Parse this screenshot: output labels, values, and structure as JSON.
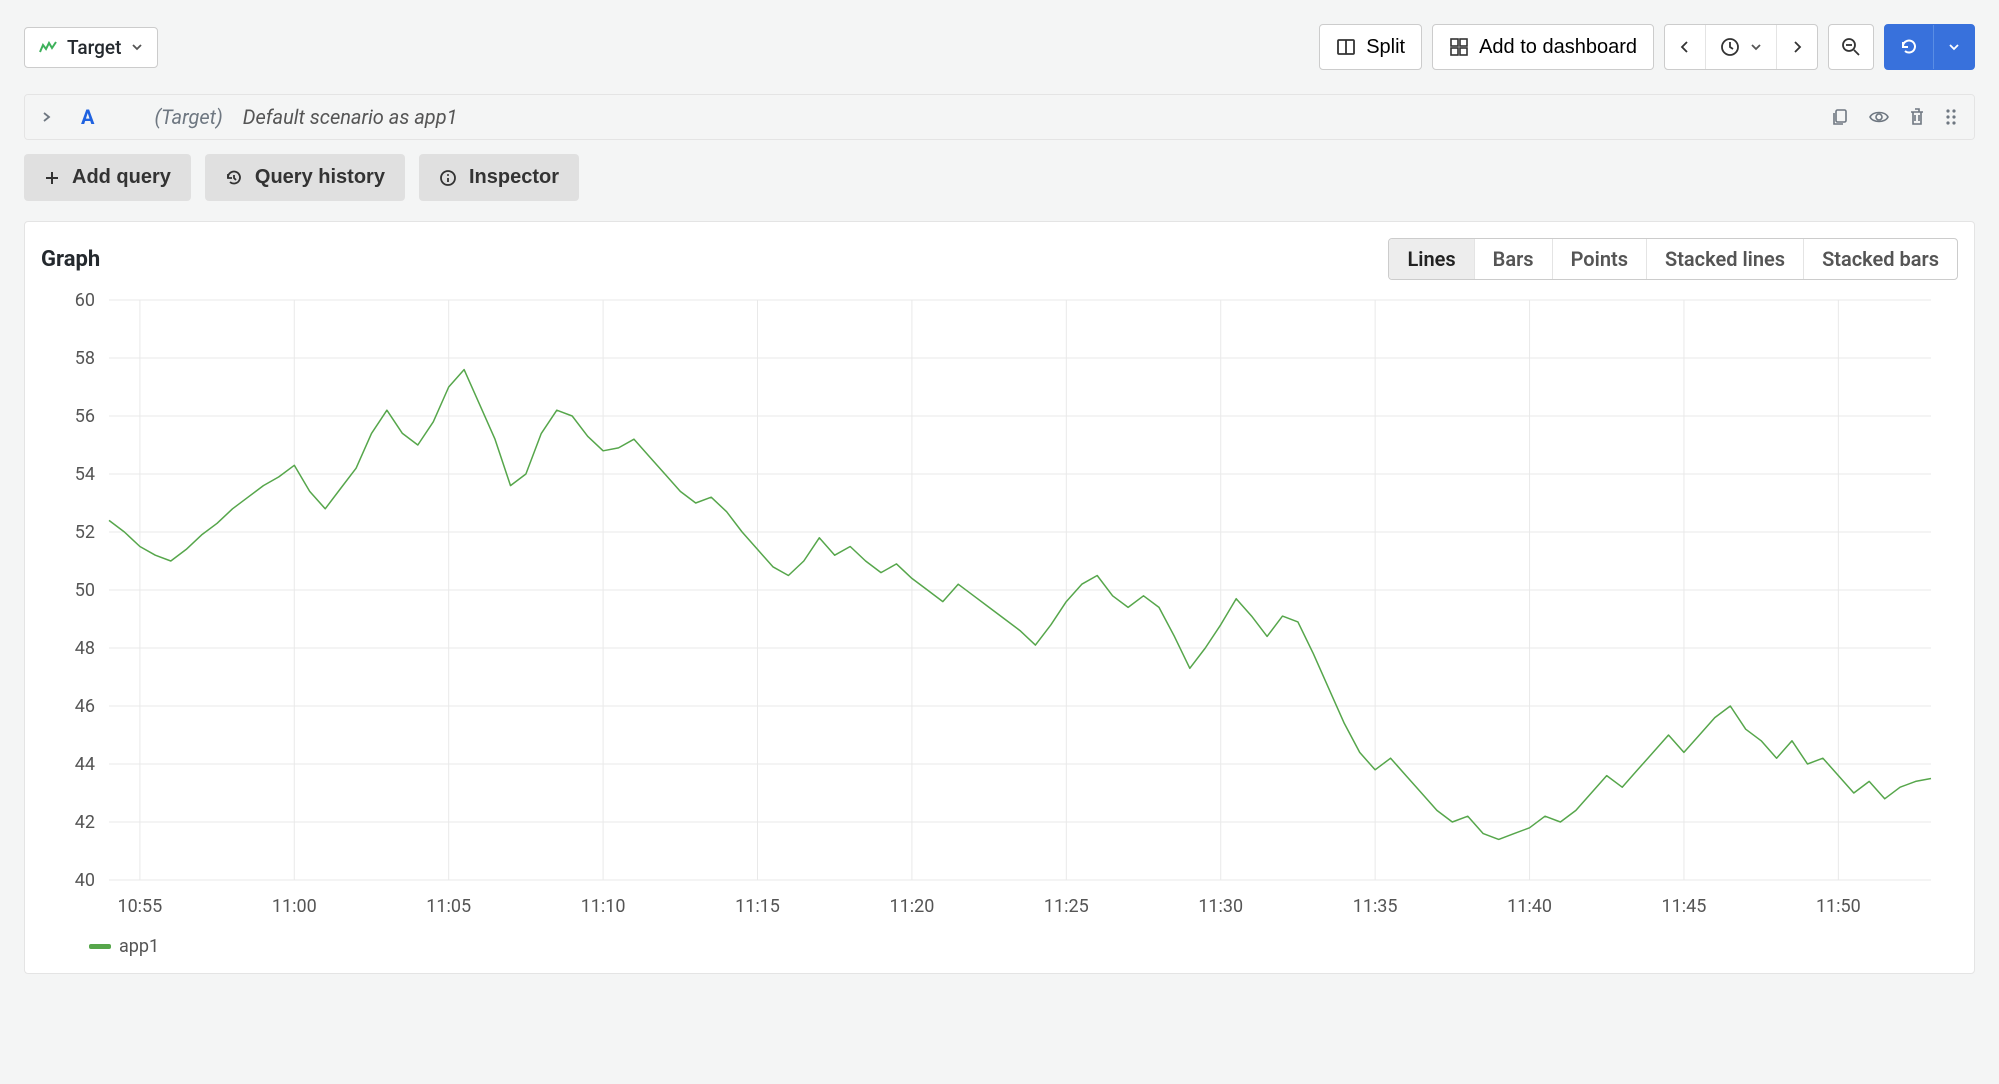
{
  "toolbar": {
    "datasource": {
      "label": "Target",
      "icon_color": "#3eb15b"
    },
    "split_label": "Split",
    "add_to_dashboard_label": "Add to dashboard"
  },
  "query_row": {
    "letter": "A",
    "datasource_label": "(Target)",
    "title": "Default scenario as app1"
  },
  "query_buttons": {
    "add_query": "Add query",
    "query_history": "Query history",
    "inspector": "Inspector"
  },
  "panel": {
    "title": "Graph",
    "viz_options": [
      "Lines",
      "Bars",
      "Points",
      "Stacked lines",
      "Stacked bars"
    ],
    "viz_active": "Lines"
  },
  "chart": {
    "type": "line",
    "series_name": "app1",
    "line_color": "#56a64b",
    "line_width": 1.5,
    "background_color": "#ffffff",
    "grid_color": "#e9e9e9",
    "axis_text_color": "#555555",
    "axis_fontsize": 18,
    "ylim": [
      40,
      60
    ],
    "ytick_step": 2,
    "y_ticks": [
      40,
      42,
      44,
      46,
      48,
      50,
      52,
      54,
      56,
      58,
      60
    ],
    "x_ticks": [
      "10:55",
      "11:00",
      "11:05",
      "11:10",
      "11:15",
      "11:20",
      "11:25",
      "11:30",
      "11:35",
      "11:40",
      "11:45",
      "11:50"
    ],
    "x_domain_minutes": [
      654,
      713
    ],
    "values": [
      [
        654,
        52.4
      ],
      [
        654.5,
        52.0
      ],
      [
        655,
        51.5
      ],
      [
        655.5,
        51.2
      ],
      [
        656,
        51.0
      ],
      [
        656.5,
        51.4
      ],
      [
        657,
        51.9
      ],
      [
        657.5,
        52.3
      ],
      [
        658,
        52.8
      ],
      [
        658.5,
        53.2
      ],
      [
        659,
        53.6
      ],
      [
        659.5,
        53.9
      ],
      [
        660,
        54.3
      ],
      [
        660.5,
        53.4
      ],
      [
        661,
        52.8
      ],
      [
        661.5,
        53.5
      ],
      [
        662,
        54.2
      ],
      [
        662.5,
        55.4
      ],
      [
        663,
        56.2
      ],
      [
        663.5,
        55.4
      ],
      [
        664,
        55.0
      ],
      [
        664.5,
        55.8
      ],
      [
        665,
        57.0
      ],
      [
        665.5,
        57.6
      ],
      [
        666,
        56.4
      ],
      [
        666.5,
        55.2
      ],
      [
        667,
        53.6
      ],
      [
        667.5,
        54.0
      ],
      [
        668,
        55.4
      ],
      [
        668.5,
        56.2
      ],
      [
        669,
        56.0
      ],
      [
        669.5,
        55.3
      ],
      [
        670,
        54.8
      ],
      [
        670.5,
        54.9
      ],
      [
        671,
        55.2
      ],
      [
        671.5,
        54.6
      ],
      [
        672,
        54.0
      ],
      [
        672.5,
        53.4
      ],
      [
        673,
        53.0
      ],
      [
        673.5,
        53.2
      ],
      [
        674,
        52.7
      ],
      [
        674.5,
        52.0
      ],
      [
        675,
        51.4
      ],
      [
        675.5,
        50.8
      ],
      [
        676,
        50.5
      ],
      [
        676.5,
        51.0
      ],
      [
        677,
        51.8
      ],
      [
        677.5,
        51.2
      ],
      [
        678,
        51.5
      ],
      [
        678.5,
        51.0
      ],
      [
        679,
        50.6
      ],
      [
        679.5,
        50.9
      ],
      [
        680,
        50.4
      ],
      [
        680.5,
        50.0
      ],
      [
        681,
        49.6
      ],
      [
        681.5,
        50.2
      ],
      [
        682,
        49.8
      ],
      [
        682.5,
        49.4
      ],
      [
        683,
        49.0
      ],
      [
        683.5,
        48.6
      ],
      [
        684,
        48.1
      ],
      [
        684.5,
        48.8
      ],
      [
        685,
        49.6
      ],
      [
        685.5,
        50.2
      ],
      [
        686,
        50.5
      ],
      [
        686.5,
        49.8
      ],
      [
        687,
        49.4
      ],
      [
        687.5,
        49.8
      ],
      [
        688,
        49.4
      ],
      [
        688.5,
        48.4
      ],
      [
        689,
        47.3
      ],
      [
        689.5,
        48.0
      ],
      [
        690,
        48.8
      ],
      [
        690.5,
        49.7
      ],
      [
        691,
        49.1
      ],
      [
        691.5,
        48.4
      ],
      [
        692,
        49.1
      ],
      [
        692.5,
        48.9
      ],
      [
        693,
        47.8
      ],
      [
        693.5,
        46.6
      ],
      [
        694,
        45.4
      ],
      [
        694.5,
        44.4
      ],
      [
        695,
        43.8
      ],
      [
        695.5,
        44.2
      ],
      [
        696,
        43.6
      ],
      [
        696.5,
        43.0
      ],
      [
        697,
        42.4
      ],
      [
        697.5,
        42.0
      ],
      [
        698,
        42.2
      ],
      [
        698.5,
        41.6
      ],
      [
        699,
        41.4
      ],
      [
        699.5,
        41.6
      ],
      [
        700,
        41.8
      ],
      [
        700.5,
        42.2
      ],
      [
        701,
        42.0
      ],
      [
        701.5,
        42.4
      ],
      [
        702,
        43.0
      ],
      [
        702.5,
        43.6
      ],
      [
        703,
        43.2
      ],
      [
        703.5,
        43.8
      ],
      [
        704,
        44.4
      ],
      [
        704.5,
        45.0
      ],
      [
        705,
        44.4
      ],
      [
        705.5,
        45.0
      ],
      [
        706,
        45.6
      ],
      [
        706.5,
        46.0
      ],
      [
        707,
        45.2
      ],
      [
        707.5,
        44.8
      ],
      [
        708,
        44.2
      ],
      [
        708.5,
        44.8
      ],
      [
        709,
        44.0
      ],
      [
        709.5,
        44.2
      ],
      [
        710,
        43.6
      ],
      [
        710.5,
        43.0
      ],
      [
        711,
        43.4
      ],
      [
        711.5,
        42.8
      ],
      [
        712,
        43.2
      ],
      [
        712.5,
        43.4
      ],
      [
        713,
        43.5
      ]
    ]
  },
  "colors": {
    "btn_bg": "#ffffff",
    "btn_border": "#cccccc",
    "primary": "#3871dc",
    "grey_btn": "#e0e0e0",
    "page_bg": "#f4f5f5"
  }
}
